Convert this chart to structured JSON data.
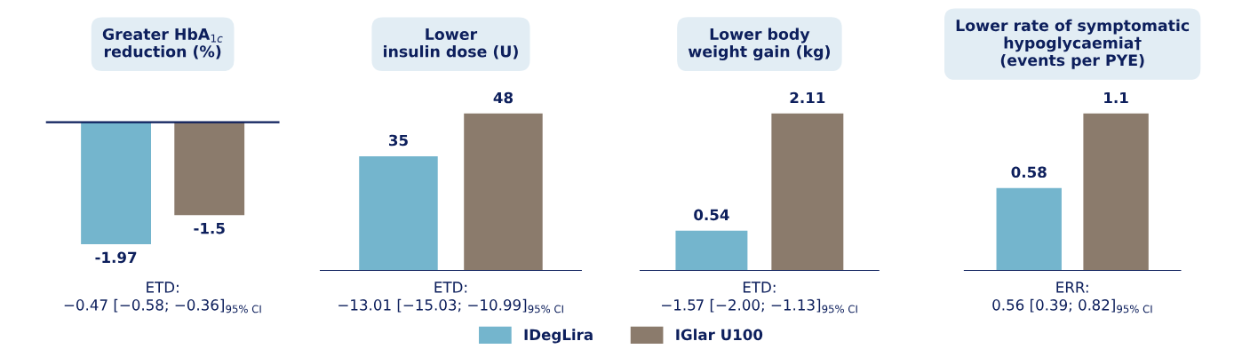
{
  "chart_data": [
    {
      "type": "bar",
      "title": "Greater HbA$_{1c}$\nreduction (%)",
      "categories": [
        null
      ],
      "tick_labels": false,
      "data_labels": true,
      "legend": "bottom",
      "series": [
        {
          "name": "IDegLira",
          "color": "#74b5cd",
          "values": [
            -1.97
          ]
        },
        {
          "name": "IGlar U100",
          "color": "#8b7b6c",
          "values": [
            -1.5
          ]
        }
      ],
      "annotations": [
        "ETD:\n−0.47 [−0.58; −0.36]$_{95% CI}$"
      ]
    },
    {
      "type": "bar",
      "title": "Lower\ninsulin dose (U)",
      "categories": [
        null
      ],
      "tick_labels": false,
      "data_labels": true,
      "legend": "bottom",
      "series": [
        {
          "name": "IDegLira",
          "color": "#74b5cd",
          "values": [
            35
          ]
        },
        {
          "name": "IGlar U100",
          "color": "#8b7b6c",
          "values": [
            48
          ]
        }
      ],
      "annotations": [
        "ETD:\n−13.01 [−15.03; −10.99]$_{95% CI}$"
      ]
    },
    {
      "type": "bar",
      "title": "Lower body\nweight gain (kg)",
      "categories": [
        null
      ],
      "tick_labels": false,
      "data_labels": true,
      "legend": "bottom",
      "series": [
        {
          "name": "IDegLira",
          "color": "#74b5cd",
          "values": [
            0.54
          ]
        },
        {
          "name": "IGlar U100",
          "color": "#8b7b6c",
          "values": [
            2.11
          ]
        }
      ],
      "annotations": [
        "ETD:\n−1.57 [−2.00; −1.13]$_{95% CI}$"
      ]
    },
    {
      "type": "bar",
      "title": "Lower rate of symptomatic\nhypoglycaemia†\n(events per PYE)",
      "categories": [
        null
      ],
      "tick_labels": false,
      "data_labels": true,
      "legend": "bottom",
      "series": [
        {
          "name": "IDegLira",
          "color": "#74b5cd",
          "values": [
            0.58
          ]
        },
        {
          "name": "IGlar U100",
          "color": "#8b7b6c",
          "values": [
            1.1
          ]
        }
      ],
      "annotations": [
        "ERR:\n0.56 [0.39; 0.82]$_{95% CI}$"
      ]
    }
  ]
}
